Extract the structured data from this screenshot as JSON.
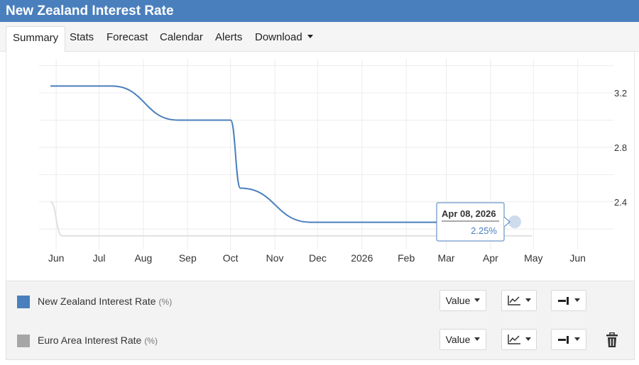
{
  "window": {
    "title": "New Zealand Interest Rate"
  },
  "tabs": [
    {
      "label": "Summary",
      "active": true
    },
    {
      "label": "Stats"
    },
    {
      "label": "Forecast"
    },
    {
      "label": "Calendar"
    },
    {
      "label": "Alerts"
    },
    {
      "label": "Download",
      "dropdown": true
    }
  ],
  "chart_data": {
    "type": "line",
    "x_tick_labels": [
      "Jun",
      "Jul",
      "Aug",
      "Sep",
      "Oct",
      "Nov",
      "Dec",
      "2026",
      "Feb",
      "Mar",
      "Apr",
      "May",
      "Jun"
    ],
    "y_tick_labels": [
      "2.4",
      "2.8",
      "3.2"
    ],
    "ylim": [
      2.05,
      3.45
    ],
    "grid": true,
    "series": [
      {
        "name": "New Zealand Interest Rate",
        "color": "#4a7fbd",
        "points": [
          {
            "x": "2025-05-28",
            "y": 3.25
          },
          {
            "x": "2025-07-10",
            "y": 3.25
          },
          {
            "x": "2025-08-25",
            "y": 3.0
          },
          {
            "x": "2025-10-01",
            "y": 3.0
          },
          {
            "x": "2025-10-08",
            "y": 2.5
          },
          {
            "x": "2025-11-26",
            "y": 2.25
          },
          {
            "x": "2026-04-08",
            "y": 2.25
          }
        ]
      },
      {
        "name": "Euro Area Interest Rate",
        "color": "#e0e0e0",
        "points": [
          {
            "x": "2025-05-28",
            "y": 2.4
          },
          {
            "x": "2025-06-05",
            "y": 2.15
          },
          {
            "x": "2026-04-30",
            "y": 2.15
          }
        ]
      }
    ],
    "tooltip": {
      "date": "Apr 08, 2026",
      "value": "2.25%"
    }
  },
  "legend": {
    "rows": [
      {
        "name": "New Zealand Interest Rate",
        "unit": "(%)",
        "color": "#4a7fbd",
        "value_label": "Value",
        "deletable": false
      },
      {
        "name": "Euro Area Interest Rate",
        "unit": "(%)",
        "color": "#a6a6a6",
        "value_label": "Value",
        "deletable": true
      }
    ],
    "icons": {
      "chart_type": "line-chart-icon",
      "axis": "axis-side-icon",
      "delete": "trash-icon"
    }
  }
}
